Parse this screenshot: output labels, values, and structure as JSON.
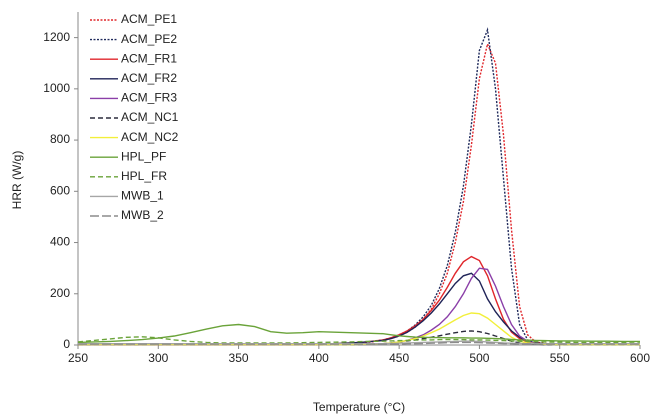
{
  "chart_data": {
    "type": "line",
    "x_label": "Temperature (°C)",
    "y_label": "HRR (W/g)",
    "x": [
      250,
      260,
      270,
      280,
      290,
      300,
      310,
      320,
      330,
      340,
      350,
      360,
      370,
      380,
      390,
      400,
      410,
      420,
      430,
      440,
      445,
      450,
      455,
      460,
      465,
      470,
      475,
      480,
      485,
      490,
      495,
      500,
      505,
      510,
      515,
      520,
      525,
      530,
      535,
      540,
      550,
      560,
      570,
      580,
      590,
      600
    ],
    "xlim": [
      250,
      600
    ],
    "xticks": [
      250,
      300,
      350,
      400,
      450,
      500,
      550,
      600
    ],
    "ylim": [
      0,
      1300
    ],
    "yticks": [
      0,
      200,
      400,
      600,
      800,
      1000,
      1200
    ],
    "grid": false,
    "legend": "upper left",
    "series": [
      {
        "name": "ACM_PE1",
        "color": "#e0262b",
        "dash": "dotted",
        "values": [
          2,
          2,
          2,
          2,
          2,
          2,
          2,
          2,
          2,
          2,
          2,
          2,
          2,
          2,
          2,
          2,
          4,
          6,
          10,
          18,
          25,
          35,
          50,
          70,
          100,
          140,
          200,
          280,
          400,
          560,
          780,
          1040,
          1175,
          1100,
          820,
          450,
          150,
          40,
          12,
          6,
          4,
          3,
          3,
          3,
          3,
          3
        ]
      },
      {
        "name": "ACM_PE2",
        "color": "#1f2a5c",
        "dash": "dotted",
        "values": [
          2,
          2,
          2,
          2,
          2,
          2,
          2,
          2,
          2,
          2,
          2,
          2,
          2,
          2,
          2,
          2,
          4,
          7,
          12,
          20,
          28,
          40,
          55,
          78,
          110,
          155,
          220,
          310,
          440,
          620,
          860,
          1150,
          1230,
          1000,
          650,
          300,
          80,
          20,
          8,
          5,
          3,
          3,
          3,
          3,
          3,
          3
        ]
      },
      {
        "name": "ACM_FR1",
        "color": "#e0262b",
        "dash": "solid",
        "values": [
          2,
          2,
          2,
          2,
          2,
          2,
          2,
          2,
          2,
          2,
          2,
          2,
          2,
          2,
          2,
          3,
          5,
          8,
          12,
          20,
          28,
          40,
          55,
          75,
          100,
          135,
          175,
          225,
          280,
          325,
          345,
          330,
          270,
          180,
          100,
          50,
          25,
          12,
          6,
          4,
          3,
          3,
          3,
          3,
          3,
          3
        ]
      },
      {
        "name": "ACM_FR2",
        "color": "#1f2357",
        "dash": "solid",
        "values": [
          2,
          2,
          2,
          2,
          2,
          2,
          2,
          2,
          2,
          2,
          2,
          2,
          2,
          2,
          2,
          3,
          5,
          8,
          12,
          18,
          25,
          35,
          50,
          70,
          95,
          125,
          160,
          200,
          240,
          270,
          280,
          250,
          180,
          130,
          90,
          55,
          30,
          15,
          8,
          5,
          3,
          3,
          3,
          3,
          3,
          3
        ]
      },
      {
        "name": "ACM_FR3",
        "color": "#8b3fa8",
        "dash": "solid",
        "values": [
          2,
          2,
          2,
          2,
          2,
          2,
          2,
          2,
          2,
          2,
          2,
          2,
          2,
          2,
          2,
          2,
          3,
          3,
          4,
          5,
          8,
          12,
          18,
          28,
          40,
          58,
          80,
          110,
          150,
          200,
          260,
          300,
          295,
          230,
          150,
          80,
          35,
          15,
          6,
          4,
          3,
          3,
          3,
          3,
          3,
          3
        ]
      },
      {
        "name": "ACM_NC1",
        "color": "#2b2b3c",
        "dash": "dashed",
        "values": [
          2,
          2,
          2,
          2,
          2,
          2,
          2,
          2,
          2,
          2,
          2,
          2,
          2,
          2,
          2,
          2,
          2,
          2,
          3,
          5,
          8,
          12,
          16,
          20,
          25,
          30,
          36,
          42,
          48,
          53,
          55,
          52,
          45,
          35,
          25,
          15,
          8,
          5,
          3,
          2,
          2,
          2,
          2,
          2,
          2,
          2
        ]
      },
      {
        "name": "ACM_NC2",
        "color": "#f2ef3a",
        "dash": "solid",
        "values": [
          2,
          2,
          2,
          2,
          2,
          2,
          2,
          2,
          2,
          2,
          2,
          2,
          2,
          2,
          2,
          2,
          2,
          2,
          3,
          5,
          8,
          12,
          18,
          25,
          35,
          48,
          62,
          80,
          98,
          115,
          125,
          122,
          105,
          80,
          55,
          30,
          15,
          8,
          5,
          3,
          2,
          2,
          2,
          2,
          2,
          2
        ]
      },
      {
        "name": "HPL_PF",
        "color": "#6aa339",
        "dash": "solid",
        "values": [
          10,
          12,
          14,
          17,
          21,
          27,
          35,
          48,
          62,
          75,
          80,
          72,
          52,
          46,
          48,
          52,
          50,
          48,
          46,
          44,
          40,
          36,
          33,
          31,
          30,
          29,
          29,
          28,
          28,
          28,
          27,
          27,
          26,
          25,
          24,
          22,
          20,
          19,
          18,
          17,
          16,
          16,
          15,
          15,
          14,
          14
        ]
      },
      {
        "name": "HPL_FR",
        "color": "#6aa339",
        "dash": "dashed",
        "values": [
          12,
          18,
          24,
          30,
          32,
          28,
          20,
          14,
          10,
          8,
          8,
          8,
          8,
          8,
          9,
          10,
          11,
          12,
          14,
          15,
          16,
          17,
          18,
          19,
          20,
          20,
          21,
          21,
          21,
          21,
          20,
          20,
          19,
          18,
          17,
          16,
          15,
          14,
          13,
          12,
          11,
          10,
          10,
          9,
          9,
          8
        ]
      },
      {
        "name": "MWB_1",
        "color": "#a6a6a6",
        "dash": "solid",
        "values": [
          5,
          5,
          5,
          5,
          5,
          5,
          5,
          5,
          5,
          5,
          5,
          5,
          5,
          5,
          5,
          5,
          5,
          5,
          5,
          5,
          6,
          7,
          8,
          9,
          10,
          11,
          12,
          13,
          14,
          15,
          15,
          14,
          12,
          10,
          8,
          7,
          6,
          5,
          5,
          5,
          5,
          5,
          5,
          5,
          5,
          5
        ]
      },
      {
        "name": "MWB_2",
        "color": "#8c8c8c",
        "dash": "long-dashed",
        "values": [
          3,
          3,
          3,
          3,
          3,
          3,
          3,
          3,
          3,
          3,
          3,
          3,
          3,
          3,
          3,
          3,
          3,
          3,
          3,
          3,
          4,
          4,
          5,
          5,
          6,
          7,
          8,
          9,
          10,
          10,
          10,
          9,
          8,
          7,
          6,
          5,
          4,
          4,
          3,
          3,
          3,
          3,
          3,
          3,
          3,
          3
        ]
      }
    ]
  }
}
